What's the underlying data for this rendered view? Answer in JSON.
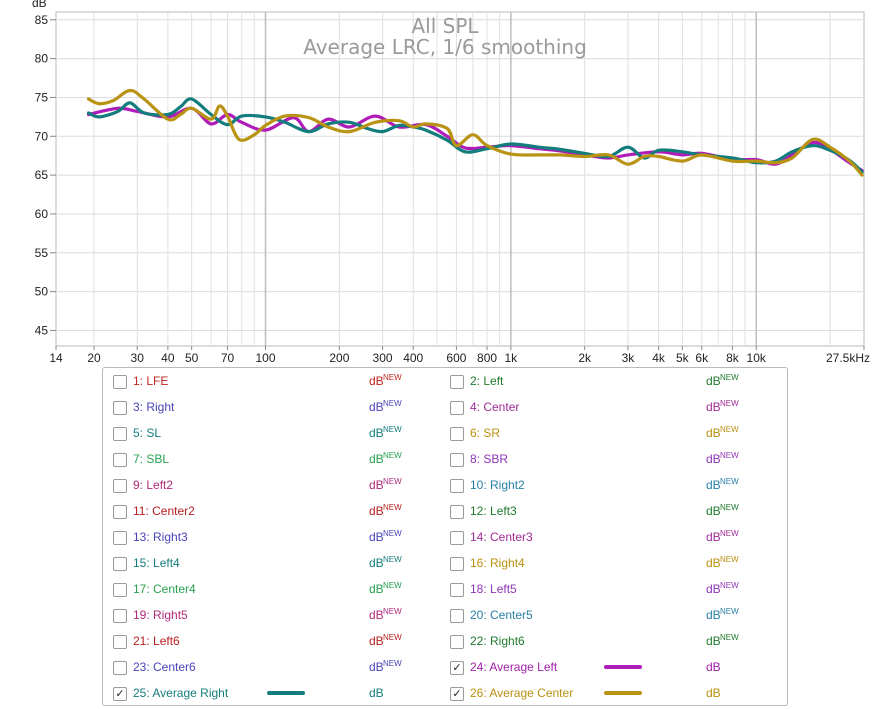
{
  "chart_data": {
    "type": "line",
    "title": "All SPL",
    "subtitle": "Average LRC, 1/6 smoothing",
    "ylabel": "dB",
    "xscale": "log",
    "xlim": [
      14,
      27500
    ],
    "ylim": [
      43,
      86
    ],
    "yticks": [
      45,
      50,
      55,
      60,
      65,
      70,
      75,
      80,
      85
    ],
    "xticks": [
      {
        "value": 14,
        "label": "14"
      },
      {
        "value": 20,
        "label": "20"
      },
      {
        "value": 30,
        "label": "30"
      },
      {
        "value": 40,
        "label": "40"
      },
      {
        "value": 50,
        "label": "50"
      },
      {
        "value": 70,
        "label": "70"
      },
      {
        "value": 100,
        "label": "100"
      },
      {
        "value": 200,
        "label": "200"
      },
      {
        "value": 300,
        "label": "300"
      },
      {
        "value": 400,
        "label": "400"
      },
      {
        "value": 600,
        "label": "600"
      },
      {
        "value": 800,
        "label": "800"
      },
      {
        "value": 1000,
        "label": "1k"
      },
      {
        "value": 2000,
        "label": "2k"
      },
      {
        "value": 3000,
        "label": "3k"
      },
      {
        "value": 4000,
        "label": "4k"
      },
      {
        "value": 5000,
        "label": "5k"
      },
      {
        "value": 6000,
        "label": "6k"
      },
      {
        "value": 8000,
        "label": "8k"
      },
      {
        "value": 10000,
        "label": "10k"
      },
      {
        "value": 27500,
        "label": "27.5kHz"
      }
    ],
    "grid": true,
    "series": [
      {
        "name": "24: Average Left",
        "color": "#b01cb8",
        "points": [
          [
            19,
            72.8
          ],
          [
            25,
            73.6
          ],
          [
            30,
            73.2
          ],
          [
            40,
            72.5
          ],
          [
            50,
            73.6
          ],
          [
            60,
            71.6
          ],
          [
            70,
            72.8
          ],
          [
            80,
            71.8
          ],
          [
            100,
            70.8
          ],
          [
            130,
            72.4
          ],
          [
            150,
            70.6
          ],
          [
            180,
            72.2
          ],
          [
            220,
            71.2
          ],
          [
            280,
            72.6
          ],
          [
            350,
            71.2
          ],
          [
            450,
            71.5
          ],
          [
            550,
            70.0
          ],
          [
            650,
            68.5
          ],
          [
            800,
            68.6
          ],
          [
            1000,
            68.8
          ],
          [
            1300,
            68.4
          ],
          [
            1600,
            68.1
          ],
          [
            2000,
            67.6
          ],
          [
            2500,
            67.2
          ],
          [
            3000,
            67.6
          ],
          [
            4000,
            68.0
          ],
          [
            5000,
            67.6
          ],
          [
            6000,
            67.8
          ],
          [
            8000,
            67.0
          ],
          [
            10000,
            67.0
          ],
          [
            12000,
            66.4
          ],
          [
            14000,
            67.6
          ],
          [
            17000,
            69.2
          ],
          [
            20000,
            68.3
          ],
          [
            24000,
            66.6
          ],
          [
            27000,
            65.6
          ]
        ]
      },
      {
        "name": "25: Average Right",
        "color": "#137d7d",
        "points": [
          [
            19,
            73.0
          ],
          [
            21,
            72.5
          ],
          [
            25,
            73.2
          ],
          [
            28,
            74.3
          ],
          [
            32,
            73.0
          ],
          [
            40,
            72.8
          ],
          [
            45,
            73.8
          ],
          [
            50,
            74.8
          ],
          [
            60,
            72.8
          ],
          [
            70,
            71.5
          ],
          [
            80,
            72.6
          ],
          [
            100,
            72.5
          ],
          [
            120,
            71.8
          ],
          [
            150,
            70.6
          ],
          [
            180,
            71.6
          ],
          [
            220,
            71.8
          ],
          [
            260,
            71.0
          ],
          [
            300,
            70.6
          ],
          [
            350,
            71.4
          ],
          [
            400,
            71.2
          ],
          [
            450,
            70.8
          ],
          [
            550,
            69.5
          ],
          [
            650,
            68.0
          ],
          [
            800,
            68.4
          ],
          [
            1000,
            69.0
          ],
          [
            1300,
            68.6
          ],
          [
            1600,
            68.3
          ],
          [
            2000,
            67.8
          ],
          [
            2500,
            67.4
          ],
          [
            3000,
            68.6
          ],
          [
            3500,
            67.2
          ],
          [
            4000,
            68.2
          ],
          [
            5000,
            68.0
          ],
          [
            6000,
            67.6
          ],
          [
            8000,
            67.2
          ],
          [
            10000,
            66.6
          ],
          [
            12000,
            66.8
          ],
          [
            14000,
            68.0
          ],
          [
            17000,
            68.8
          ],
          [
            20000,
            68.2
          ],
          [
            24000,
            66.9
          ],
          [
            27000,
            65.4
          ]
        ]
      },
      {
        "name": "26: Average Center",
        "color": "#b99314",
        "points": [
          [
            19,
            74.8
          ],
          [
            21,
            74.2
          ],
          [
            24,
            74.6
          ],
          [
            28,
            75.9
          ],
          [
            32,
            74.8
          ],
          [
            40,
            72.2
          ],
          [
            45,
            72.8
          ],
          [
            50,
            73.6
          ],
          [
            60,
            72.2
          ],
          [
            65,
            73.9
          ],
          [
            70,
            72.6
          ],
          [
            78,
            69.6
          ],
          [
            90,
            70.2
          ],
          [
            100,
            71.4
          ],
          [
            120,
            72.6
          ],
          [
            150,
            72.4
          ],
          [
            180,
            71.2
          ],
          [
            220,
            70.6
          ],
          [
            280,
            71.8
          ],
          [
            350,
            72.0
          ],
          [
            400,
            71.2
          ],
          [
            450,
            71.6
          ],
          [
            550,
            71.0
          ],
          [
            600,
            68.8
          ],
          [
            700,
            70.2
          ],
          [
            800,
            68.8
          ],
          [
            1000,
            67.7
          ],
          [
            1300,
            67.6
          ],
          [
            1600,
            67.6
          ],
          [
            2000,
            67.4
          ],
          [
            2500,
            67.6
          ],
          [
            3000,
            66.4
          ],
          [
            3500,
            67.4
          ],
          [
            4000,
            67.4
          ],
          [
            5000,
            66.8
          ],
          [
            6000,
            67.6
          ],
          [
            8000,
            66.8
          ],
          [
            10000,
            66.8
          ],
          [
            12000,
            66.6
          ],
          [
            14000,
            67.2
          ],
          [
            17000,
            69.6
          ],
          [
            20000,
            68.6
          ],
          [
            24000,
            66.8
          ],
          [
            27000,
            65.0
          ]
        ]
      }
    ],
    "legend": [
      {
        "label": "1: LFE",
        "color": "#c2251e",
        "checked": false,
        "unit": "dB",
        "badge": "NEW"
      },
      {
        "label": "2: Left",
        "color": "#1f7a2e",
        "checked": false,
        "unit": "dB",
        "badge": "NEW"
      },
      {
        "label": "3: Right",
        "color": "#4a44b8",
        "checked": false,
        "unit": "dB",
        "badge": "NEW"
      },
      {
        "label": "4: Center",
        "color": "#a02b96",
        "checked": false,
        "unit": "dB",
        "badge": "NEW"
      },
      {
        "label": "5: SL",
        "color": "#147d7d",
        "checked": false,
        "unit": "dB",
        "badge": "NEW"
      },
      {
        "label": "6: SR",
        "color": "#b8900e",
        "checked": false,
        "unit": "dB",
        "badge": "NEW"
      },
      {
        "label": "7: SBL",
        "color": "#27a14f",
        "checked": false,
        "unit": "dB",
        "badge": "NEW"
      },
      {
        "label": "8: SBR",
        "color": "#8f35b5",
        "checked": false,
        "unit": "dB",
        "badge": "NEW"
      },
      {
        "label": "9: Left2",
        "color": "#b02a7a",
        "checked": false,
        "unit": "dB",
        "badge": "NEW"
      },
      {
        "label": "10: Right2",
        "color": "#2880a8",
        "checked": false,
        "unit": "dB",
        "badge": "NEW"
      },
      {
        "label": "11: Center2",
        "color": "#b61f1f",
        "checked": false,
        "unit": "dB",
        "badge": "NEW"
      },
      {
        "label": "12: Left3",
        "color": "#1f7a2e",
        "checked": false,
        "unit": "dB",
        "badge": "NEW"
      },
      {
        "label": "13: Right3",
        "color": "#4a44b8",
        "checked": false,
        "unit": "dB",
        "badge": "NEW"
      },
      {
        "label": "14: Center3",
        "color": "#a02b96",
        "checked": false,
        "unit": "dB",
        "badge": "NEW"
      },
      {
        "label": "15: Left4",
        "color": "#147d7d",
        "checked": false,
        "unit": "dB",
        "badge": "NEW"
      },
      {
        "label": "16: Right4",
        "color": "#b8900e",
        "checked": false,
        "unit": "dB",
        "badge": "NEW"
      },
      {
        "label": "17: Center4",
        "color": "#27a14f",
        "checked": false,
        "unit": "dB",
        "badge": "NEW"
      },
      {
        "label": "18: Left5",
        "color": "#8f35b5",
        "checked": false,
        "unit": "dB",
        "badge": "NEW"
      },
      {
        "label": "19: Right5",
        "color": "#b02a7a",
        "checked": false,
        "unit": "dB",
        "badge": "NEW"
      },
      {
        "label": "20: Center5",
        "color": "#2880a8",
        "checked": false,
        "unit": "dB",
        "badge": "NEW"
      },
      {
        "label": "21: Left6",
        "color": "#b61f1f",
        "checked": false,
        "unit": "dB",
        "badge": "NEW"
      },
      {
        "label": "22: Right6",
        "color": "#1f7a2e",
        "checked": false,
        "unit": "dB",
        "badge": "NEW"
      },
      {
        "label": "23: Center6",
        "color": "#4a44b8",
        "checked": false,
        "unit": "dB",
        "badge": "NEW"
      },
      {
        "label": "24: Average Left",
        "color": "#a01fa8",
        "checked": true,
        "unit": "dB",
        "badge": "",
        "swatch": "#b01cb8"
      },
      {
        "label": "25: Average Right",
        "color": "#147d7d",
        "checked": true,
        "unit": "dB",
        "badge": "",
        "swatch": "#137d7d"
      },
      {
        "label": "26: Average Center",
        "color": "#b8900e",
        "checked": true,
        "unit": "dB",
        "badge": "",
        "swatch": "#b99314"
      }
    ]
  }
}
